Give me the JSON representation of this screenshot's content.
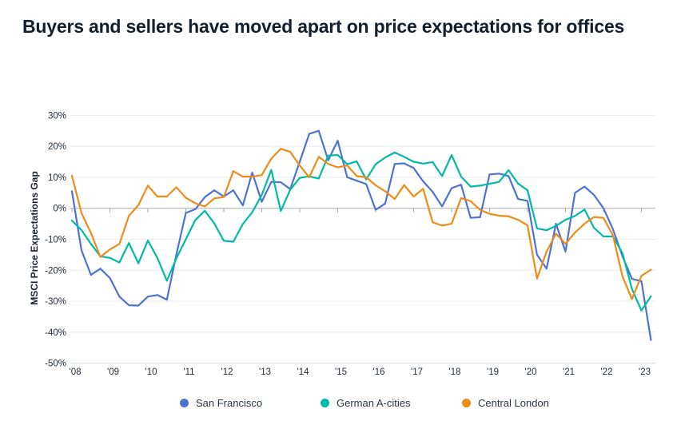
{
  "title": "Buyers and sellers have moved apart on price expectations for offices",
  "y_axis_label": "MSCI Price Expectations Gap",
  "chart_data": {
    "type": "line",
    "title": "Buyers and sellers have moved apart on price expectations for offices",
    "ylabel": "MSCI Price Expectations Gap",
    "x_unit": "quarterly",
    "x_range": [
      "2008-Q1",
      "2023-Q2"
    ],
    "ylim": [
      -50,
      30
    ],
    "grid": "horizontal",
    "legend_position": "bottom",
    "y_tick_labels": [
      "30%",
      "20%",
      "10%",
      "0%",
      "-10%",
      "-20%",
      "-30%",
      "-40%",
      "-50%"
    ],
    "y_ticks": [
      30,
      20,
      10,
      0,
      -10,
      -20,
      -30,
      -40,
      -50
    ],
    "x_tick_labels": [
      "'08",
      "'09",
      "'10",
      "'11",
      "'12",
      "'13",
      "'14",
      "'15",
      "'16",
      "'17",
      "'18",
      "'19",
      "'20",
      "'21",
      "'22",
      "'23"
    ],
    "series": [
      {
        "name": "San Francisco",
        "color": "#4d72d3",
        "values": [
          5.5,
          -13.5,
          -21.5,
          -19.5,
          -22.5,
          -28.5,
          -31.3,
          -31.4,
          -28.5,
          -28.0,
          -29.5,
          -15.0,
          -1.5,
          -0.3,
          3.6,
          5.8,
          3.8,
          5.8,
          0.9,
          11.5,
          2.1,
          8.5,
          8.4,
          6.2,
          15.0,
          24.0,
          25.0,
          15.5,
          21.8,
          10.0,
          8.9,
          7.8,
          -0.5,
          1.5,
          14.3,
          14.5,
          13.0,
          8.7,
          5.3,
          0.6,
          6.5,
          7.6,
          -3.1,
          -2.9,
          10.9,
          11.2,
          10.4,
          3.0,
          2.4,
          -15.0,
          -19.5,
          -5.0,
          -14.0,
          5.0,
          7.0,
          4.3,
          0.0,
          -6.8,
          -15.5,
          -22.8,
          -23.5,
          -42.5
        ]
      },
      {
        "name": "German A-cities",
        "color": "#00bba4",
        "values": [
          -4.0,
          -7.0,
          -11.5,
          -15.5,
          -16.0,
          -17.5,
          -11.2,
          -17.8,
          -10.4,
          -16.0,
          -23.4,
          -16.2,
          -10.0,
          -3.8,
          -0.8,
          -4.9,
          -10.5,
          -10.8,
          -5.1,
          -1.3,
          4.3,
          12.4,
          -0.9,
          6.0,
          9.8,
          10.3,
          9.6,
          17.0,
          17.2,
          14.2,
          15.1,
          9.3,
          14.2,
          16.4,
          18.0,
          16.6,
          15.0,
          14.4,
          14.9,
          10.4,
          17.2,
          10.2,
          7.0,
          7.3,
          7.9,
          8.5,
          12.3,
          8.0,
          5.8,
          -6.5,
          -7.1,
          -5.7,
          -3.7,
          -2.5,
          -0.4,
          -6.3,
          -9.1,
          -9.1,
          -14.5,
          -26.0,
          -33.0,
          -28.4
        ]
      },
      {
        "name": "Central London",
        "color": "#ef8c17",
        "values": [
          10.5,
          -1.5,
          -8.0,
          -15.7,
          -13.3,
          -11.5,
          -2.4,
          1.0,
          7.3,
          3.8,
          3.8,
          6.8,
          3.4,
          1.6,
          0.6,
          3.2,
          3.6,
          12.0,
          10.2,
          10.2,
          10.7,
          16.0,
          19.2,
          18.2,
          13.8,
          10.0,
          16.6,
          14.3,
          13.2,
          13.8,
          10.4,
          10.0,
          7.4,
          5.5,
          3.0,
          7.5,
          3.8,
          6.3,
          -4.5,
          -5.6,
          -5.0,
          3.3,
          2.3,
          -0.5,
          -1.8,
          -2.4,
          -2.6,
          -3.7,
          -5.5,
          -22.7,
          -14.0,
          -8.2,
          -11.5,
          -7.8,
          -5.0,
          -2.8,
          -3.1,
          -8.8,
          -22.0,
          -29.3,
          -21.8,
          -19.8
        ]
      }
    ]
  }
}
